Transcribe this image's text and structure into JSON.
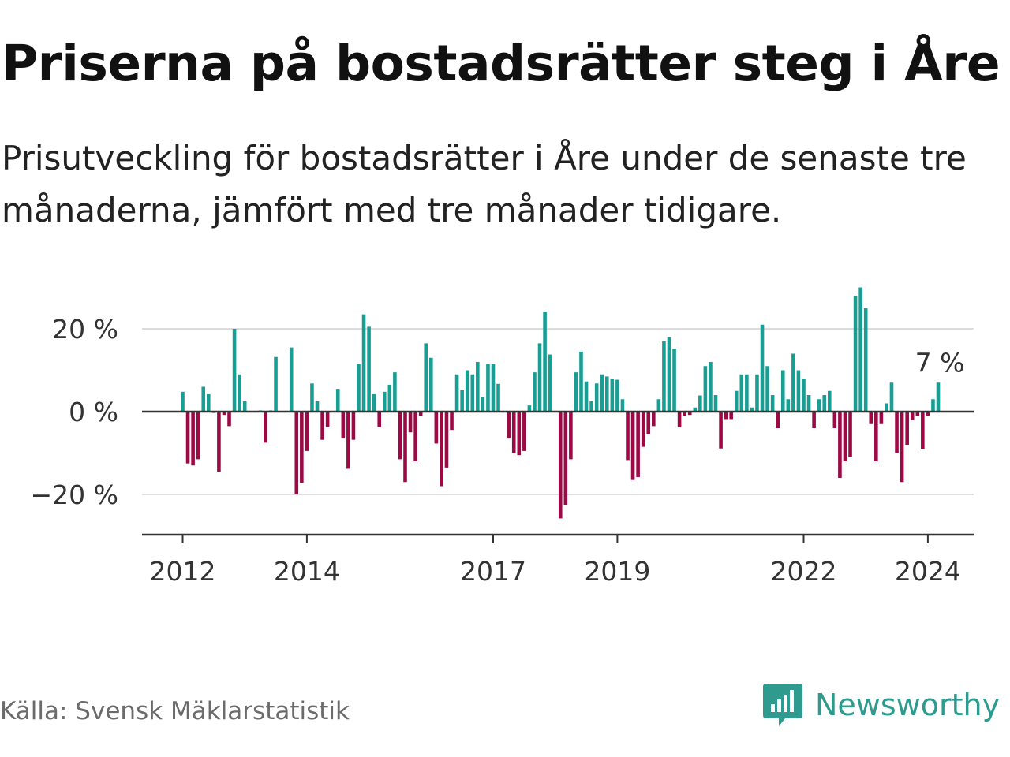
{
  "title": "Priserna på bostadsrätter steg i Åre",
  "subtitle": "Prisutveckling för bostadsrätter i Åre under de senaste tre månaderna, jämfört med tre månader tidigare.",
  "source": "Källa: Svensk Mäklarstatistik",
  "brand": {
    "name": "Newsworthy",
    "icon": "newsworthy-logo-icon"
  },
  "colors": {
    "positive": "#1a9e93",
    "negative": "#9c0a45",
    "grid": "#dddddd",
    "axis": "#333333",
    "brand": "#2f9a8e"
  },
  "chart_data": {
    "type": "bar",
    "title": "Priserna på bostadsrätter steg i Åre",
    "xlabel": "",
    "ylabel": "",
    "unit": "%",
    "ylim": [
      -29,
      30
    ],
    "y_ticks": [
      {
        "value": 20,
        "label": "20 %"
      },
      {
        "value": 0,
        "label": "0 %"
      },
      {
        "value": -20,
        "label": "−20 %"
      }
    ],
    "x_ticks": [
      {
        "value": 2012,
        "label": "2012"
      },
      {
        "value": 2014,
        "label": "2014"
      },
      {
        "value": 2017,
        "label": "2017"
      },
      {
        "value": 2019,
        "label": "2019"
      },
      {
        "value": 2022,
        "label": "2022"
      },
      {
        "value": 2024,
        "label": "2024"
      }
    ],
    "start": {
      "year": 2012,
      "month": 1
    },
    "values": [
      4.8,
      -12.5,
      -13.0,
      -11.5,
      6.0,
      4.2,
      -0.3,
      -14.5,
      -0.8,
      -3.5,
      20.0,
      9.0,
      2.5,
      0.2,
      -0.2,
      0.3,
      -7.5,
      0.3,
      13.2,
      0.1,
      0.2,
      15.5,
      -20.0,
      -17.2,
      -9.5,
      6.8,
      2.5,
      -6.8,
      -3.8,
      0.1,
      5.5,
      -6.5,
      -13.8,
      -6.8,
      11.5,
      23.5,
      20.5,
      4.2,
      -3.7,
      4.8,
      6.5,
      9.5,
      -11.5,
      -17.0,
      -5.0,
      -12.0,
      -1.0,
      16.5,
      13.0,
      -7.7,
      -18.0,
      -13.5,
      -4.4,
      9.0,
      5.2,
      10.0,
      9.0,
      12.0,
      3.5,
      11.5,
      11.5,
      6.7,
      -0.2,
      -6.5,
      -10.0,
      -10.5,
      -9.5,
      1.5,
      9.5,
      16.5,
      24.0,
      13.8,
      -0.2,
      -25.8,
      -22.5,
      -11.5,
      9.5,
      14.5,
      7.3,
      2.5,
      6.8,
      9.0,
      8.5,
      8.0,
      7.7,
      3.0,
      -11.7,
      -16.5,
      -15.8,
      -8.5,
      -5.5,
      -3.5,
      3.0,
      17.0,
      18.0,
      15.2,
      -3.8,
      -1.0,
      -0.8,
      1.0,
      3.9,
      11.0,
      12.0,
      4.0,
      -8.9,
      -1.8,
      -1.8,
      5.0,
      9.0,
      9.0,
      1.0,
      9.0,
      21.0,
      11.0,
      4.0,
      -4.0,
      10.0,
      3.0,
      14.0,
      10.0,
      8.0,
      4.0,
      -4.0,
      3.0,
      4.0,
      5.0,
      -4.0,
      -16.0,
      -12.0,
      -11.0,
      28.0,
      30.0,
      25.0,
      -3.0,
      -12.0,
      -3.0,
      2.0,
      7.0,
      -10.0,
      -17.0,
      -8.0,
      -2.0,
      -1.0,
      -9.0,
      -1.0,
      3.0,
      7.0
    ],
    "annotation": {
      "text": "7 %",
      "target": "last"
    }
  }
}
